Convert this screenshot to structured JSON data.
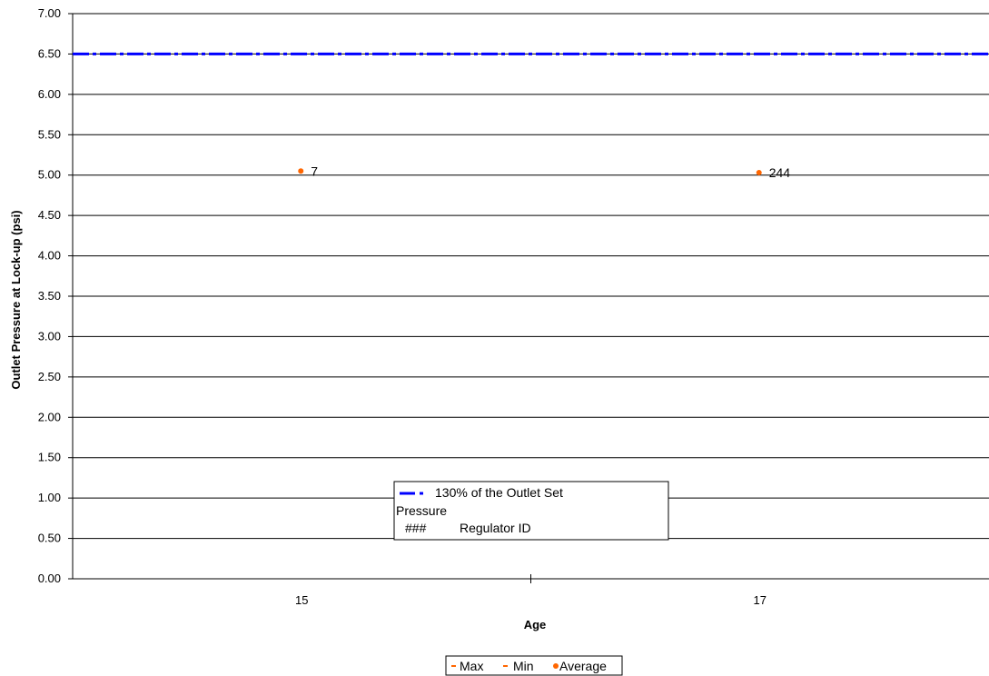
{
  "chart_data": {
    "type": "scatter",
    "title": "",
    "xlabel": "Age",
    "ylabel": "Outlet Pressure at Lock-up (psi)",
    "categories": [
      "15",
      "17"
    ],
    "ylim": [
      0,
      7
    ],
    "y_ticks": [
      "0.00",
      "0.50",
      "1.00",
      "1.50",
      "2.00",
      "2.50",
      "3.00",
      "3.50",
      "4.00",
      "4.50",
      "5.00",
      "5.50",
      "6.00",
      "6.50",
      "7.00"
    ],
    "grid": true,
    "reference_line": {
      "value": 6.5,
      "color": "#0000ff",
      "style": "dash-dot"
    },
    "series": [
      {
        "name": "Max",
        "color": "#ff6600",
        "marker": "dash",
        "values": []
      },
      {
        "name": "Min",
        "color": "#ff6600",
        "marker": "dash",
        "values": []
      },
      {
        "name": "Average",
        "color": "#ff6600",
        "marker": "circle",
        "values": [
          5.05,
          5.03
        ],
        "point_labels": [
          "7",
          "244"
        ]
      }
    ],
    "legend": {
      "placement": "bottom",
      "items": [
        "Max",
        "Min",
        "Average"
      ]
    },
    "annotation_box": {
      "line_label_1": "130% of the Outlet Set",
      "line_label_2": "Pressure",
      "id_symbol": "###",
      "id_label": "Regulator ID"
    }
  }
}
